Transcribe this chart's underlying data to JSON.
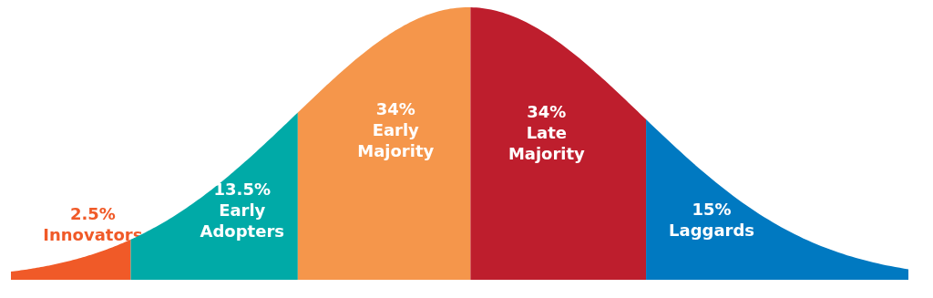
{
  "chart_data": {
    "type": "other",
    "categories": [
      "Innovators",
      "Early Adopters",
      "Early Majority",
      "Late Majority",
      "Laggards"
    ],
    "values": [
      2.5,
      13.5,
      34,
      34,
      15
    ],
    "value_labels": [
      "2.5%",
      "13.5%",
      "34%",
      "34%",
      "15%"
    ],
    "colors": [
      "#f05a28",
      "#00aaa7",
      "#f5964b",
      "#be1e2d",
      "#0079c1"
    ]
  }
}
